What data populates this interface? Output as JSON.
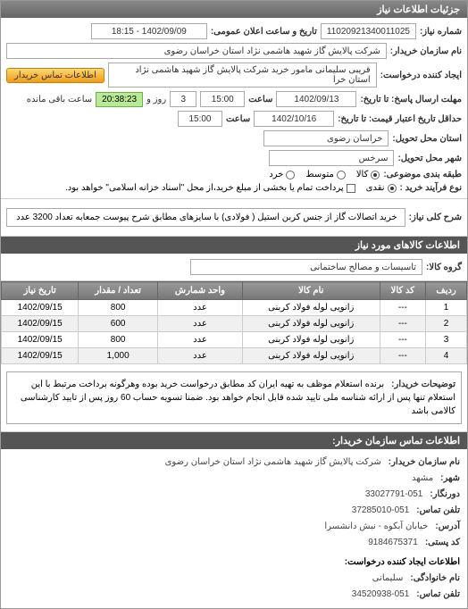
{
  "header": {
    "title": "جزئیات اطلاعات نیاز"
  },
  "top": {
    "request_no_label": "شماره نیاز:",
    "request_no": "11020921340011025",
    "announce_label": "تاریخ و ساعت اعلان عمومی:",
    "announce_value": "1402/09/09 - 18:15",
    "buyer_org_label": "نام سازمان خریدار:",
    "buyer_org": "شرکت پالایش گاز شهید هاشمی نژاد   استان خراسان رضوی",
    "creator_label": "ایجاد کننده درخواست:",
    "creator": "قریبی   سلیمانی مامور خرید شرکت پالایش گاز شهید هاشمی نژاد   استان خرا",
    "contact_btn": "اطلاعات تماس خریدار",
    "deadline_label": "مهلت ارسال پاسخ: تا تاریخ:",
    "deadline_date": "1402/09/13",
    "time_label": "ساعت",
    "deadline_time": "15:00",
    "days": "3",
    "days_label": "روز و",
    "remaining_time": "20:38:23",
    "remaining_label": "ساعت باقی مانده",
    "validity_label": "حداقل تاریخ اعتبار قیمت: تا تاریخ:",
    "validity_date": "1402/10/16",
    "validity_time": "15:00",
    "province_label": "استان محل تحویل:",
    "province": "خراسان رضوی",
    "city_label": "شهر محل تحویل:",
    "city": "سرخس",
    "package_label": "طبقه بندی موضوعی:",
    "pkg_all": "کالا",
    "pkg_mid": "متوسط",
    "pkg_small": "خرد",
    "payment_label": "نوع فرآیند خرید :",
    "pay_opt1": "نقدی",
    "pay_opt2": "پرداخت تمام یا بخشی از مبلغ خرید،از محل \"اسناد خزانه اسلامی\" خواهد بود."
  },
  "need": {
    "title_label": "شرح کلی نیاز:",
    "title": "خرید اتصالات گاز از جنس کربن استیل ( فولادی) با سایزهای مطابق شرح پیوست جمعابه تعداد 3200 عدد"
  },
  "goods": {
    "section": "اطلاعات کالاهای مورد نیاز",
    "group_label": "گروه کالا:",
    "group": "تاسیسات و مصالح ساختمانی"
  },
  "table": {
    "cols": [
      "ردیف",
      "کد کالا",
      "نام کالا",
      "واحد شمارش",
      "تعداد / مقدار",
      "تاریخ نیاز"
    ],
    "rows": [
      [
        "1",
        "---",
        "زانویی لوله فولاد کربنی",
        "عدد",
        "800",
        "1402/09/15"
      ],
      [
        "2",
        "---",
        "زانویی لوله فولاد کربنی",
        "عدد",
        "600",
        "1402/09/15"
      ],
      [
        "3",
        "---",
        "زانویی لوله فولاد کربنی",
        "عدد",
        "800",
        "1402/09/15"
      ],
      [
        "4",
        "---",
        "زانویی لوله فولاد کربنی",
        "عدد",
        "1,000",
        "1402/09/15"
      ]
    ]
  },
  "desc": {
    "label": "توضیحات خریدار:",
    "text": "برنده استعلام موظف به تهیه ایران کد مطابق درخواست خرید بوده وهرگونه برداخت مرتبط با این استعلام تنها پس از ارائه شناسه ملی تایید شده قابل انجام خواهد بود. ضمنا تسویه حساب 60 روز پس از تایید کارشناسی کالامی باشد"
  },
  "contact": {
    "section": "اطلاعات تماس سازمان خریدار:",
    "org_label": "نام سازمان خریدار:",
    "org": "شرکت پالایش گاز شهید هاشمی نژاد استان خراسان رضوی",
    "city_label": "شهر:",
    "city": "مشهد",
    "fax_label": "دورنگار:",
    "fax": "33027791-051",
    "tel_label": "تلفن تماس:",
    "tel": "37285010-051",
    "addr_label": "آدرس:",
    "addr": "خیابان آبکوه - نبش دانشسرا",
    "post_label": "کد پستی:",
    "post": "9184675371",
    "creator_section": "اطلاعات ایجاد کننده درخواست:",
    "family_label": "نام خانوادگی:",
    "family": "سلیمانی",
    "ctel_label": "تلفن تماس:",
    "ctel": "34520938-051"
  }
}
